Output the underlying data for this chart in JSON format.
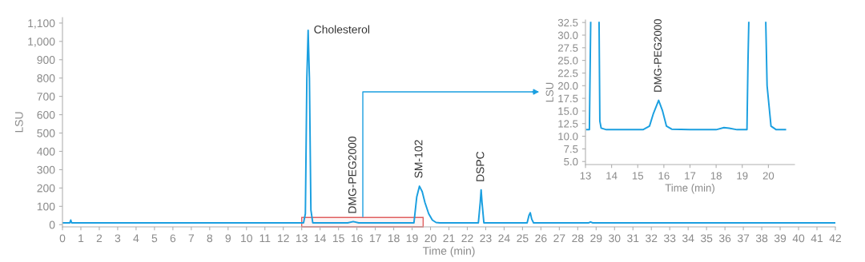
{
  "chart_data": [
    {
      "type": "line",
      "xlabel": "Time (min)",
      "ylabel": "LSU",
      "xlim": [
        0,
        42
      ],
      "ylim": [
        -12,
        1130
      ],
      "xticks": [
        0,
        1,
        2,
        3,
        4,
        5,
        6,
        7,
        8,
        9,
        10,
        11,
        12,
        13,
        14,
        15,
        16,
        17,
        18,
        19,
        20,
        21,
        22,
        23,
        24,
        25,
        26,
        27,
        28,
        29,
        30,
        31,
        32,
        33,
        34,
        35,
        36,
        37,
        38,
        39,
        40,
        41,
        42
      ],
      "yticks": [
        0,
        100,
        200,
        300,
        400,
        500,
        600,
        700,
        800,
        900,
        {
          "value": 1000,
          "label": "1,000"
        },
        {
          "value": 1100,
          "label": "1,100"
        }
      ],
      "grid": false,
      "legend": false,
      "marker": "none",
      "line_style": "solid",
      "series": [
        {
          "color": "#1a9fe0",
          "x": [
            0,
            0.4,
            0.45,
            0.5,
            0.6,
            8,
            13.1,
            13.2,
            13.28,
            13.35,
            13.42,
            13.5,
            13.6,
            15.5,
            15.8,
            16.1,
            19.1,
            19.25,
            19.4,
            19.55,
            19.7,
            19.9,
            20.1,
            20.3,
            20.5,
            22.6,
            22.7,
            22.75,
            22.8,
            22.9,
            25.25,
            25.35,
            25.42,
            25.5,
            25.6,
            28.6,
            28.7,
            28.8,
            42
          ],
          "values": [
            10,
            10,
            25,
            10,
            10,
            10,
            10,
            60,
            800,
            1060,
            800,
            80,
            10,
            10,
            17,
            10,
            10,
            150,
            210,
            180,
            120,
            60,
            25,
            12,
            10,
            10,
            120,
            190,
            120,
            10,
            10,
            50,
            65,
            30,
            10,
            10,
            15,
            10,
            10
          ]
        }
      ],
      "bands": [
        {
          "axis": "x",
          "from": 13,
          "to": 19.6,
          "color": "#e06060"
        }
      ],
      "annotations": [
        {
          "text": "Cholesterol",
          "x": 13.35,
          "y": 1060
        },
        {
          "text": "DMG-PEG2000",
          "x": 15.8,
          "y": 17
        },
        {
          "text": "SM-102",
          "x": 19.4,
          "y": 210
        },
        {
          "text": "DSPC",
          "x": 22.75,
          "y": 190
        }
      ]
    },
    {
      "type": "line",
      "xlabel": "Time (min)",
      "ylabel": "LSU",
      "xlim": [
        13,
        21
      ],
      "ylim": [
        4.4,
        33
      ],
      "xticks": [
        13,
        14,
        15,
        16,
        17,
        18,
        19,
        20
      ],
      "yticks": [
        {
          "value": 5,
          "label": "5.0"
        },
        {
          "value": 7.5,
          "label": "7.5"
        },
        {
          "value": 10,
          "label": "10.0"
        },
        {
          "value": 12.5,
          "label": "12.5"
        },
        {
          "value": 15,
          "label": "15.0"
        },
        {
          "value": 17.5,
          "label": "17.5"
        },
        {
          "value": 20,
          "label": "20.0"
        },
        {
          "value": 22.5,
          "label": "22.5"
        },
        {
          "value": 25,
          "label": "25.0"
        },
        {
          "value": 27.5,
          "label": "27.5"
        },
        {
          "value": 30,
          "label": "30.0"
        },
        {
          "value": 32.5,
          "label": "32.5"
        }
      ],
      "grid": false,
      "legend": false,
      "marker": "none",
      "line_style": "solid",
      "series": [
        {
          "color": "#1a9fe0",
          "x": [
            13.05,
            13.15,
            13.17,
            13.2
          ],
          "values": [
            11.3,
            11.3,
            20,
            32.5
          ]
        },
        {
          "color": "#1a9fe0",
          "x": [
            13.52,
            13.55,
            13.6,
            13.8,
            14.5,
            15.2,
            15.45,
            15.6,
            15.8,
            15.95,
            16.1,
            16.3,
            17,
            18,
            18.3,
            18.5,
            18.8,
            19.18,
            19.22,
            19.25
          ],
          "values": [
            32.5,
            13,
            11.6,
            11.3,
            11.3,
            11.3,
            12,
            14.5,
            17.1,
            15,
            12,
            11.4,
            11.3,
            11.3,
            11.7,
            11.6,
            11.3,
            11.3,
            25,
            32.5
          ]
        },
        {
          "color": "#1a9fe0",
          "x": [
            19.9,
            19.95,
            20.1,
            20.3,
            20.65
          ],
          "values": [
            32.5,
            20,
            12,
            11.3,
            11.3
          ]
        }
      ],
      "annotations": [
        {
          "text": "DMG-PEG2000",
          "x": 15.8,
          "y": 17.1
        }
      ]
    }
  ]
}
